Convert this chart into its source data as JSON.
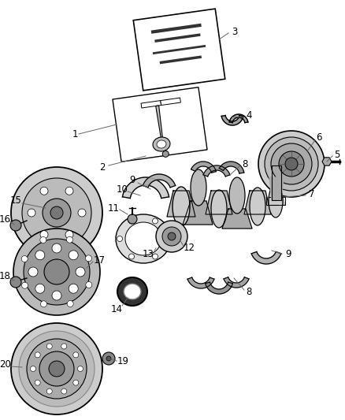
{
  "bg_color": "#ffffff",
  "lc": "#000000",
  "gray_dark": "#555555",
  "gray_mid": "#888888",
  "gray_light": "#cccccc",
  "gray_fill": "#aaaaaa",
  "figsize": [
    4.38,
    5.33
  ],
  "dpi": 100
}
